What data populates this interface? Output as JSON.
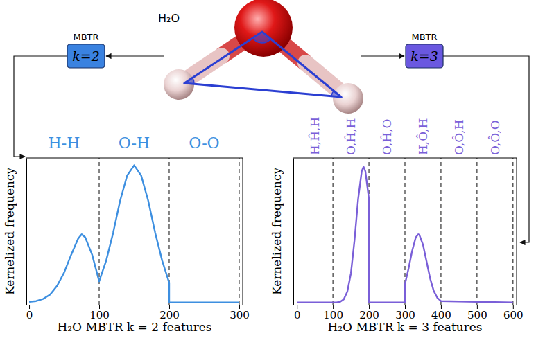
{
  "diagram": {
    "molecule": "H₂O",
    "descriptors": [
      {
        "title": "MBTR",
        "label": "k=2"
      },
      {
        "title": "MBTR",
        "label": "k=3"
      }
    ]
  },
  "chart_data": [
    {
      "type": "line",
      "x_label": "H₂O MBTR k = 2 features",
      "y_label": "Kernelized frequency",
      "xlim": [
        -4,
        305
      ],
      "xticks": [
        0,
        100,
        200,
        300
      ],
      "ylim": [
        0,
        1
      ],
      "tick_labels": "x",
      "x": [
        0,
        10,
        20,
        30,
        40,
        50,
        60,
        70,
        75,
        80,
        90,
        100,
        110,
        120,
        130,
        140,
        150,
        160,
        170,
        180,
        190,
        200,
        200,
        300
      ],
      "series": [
        {
          "color": "#3d8fe0",
          "values": [
            0.02,
            0.025,
            0.04,
            0.07,
            0.13,
            0.22,
            0.34,
            0.45,
            0.48,
            0.46,
            0.34,
            0.16,
            0.3,
            0.49,
            0.71,
            0.88,
            0.95,
            0.88,
            0.71,
            0.49,
            0.3,
            0.15,
            0.015,
            0.015
          ]
        }
      ],
      "regions": [
        {
          "label": "H-H",
          "start": 0,
          "end": 100
        },
        {
          "label": "O-H",
          "start": 100,
          "end": 200
        },
        {
          "label": "O-O",
          "start": 200,
          "end": 300
        }
      ]
    },
    {
      "type": "line",
      "x_label": "H₂O MBTR k = 3 features",
      "y_label": "Kernelized frequency",
      "xlim": [
        -10,
        610
      ],
      "xticks": [
        0,
        100,
        200,
        300,
        400,
        500,
        600
      ],
      "ylim": [
        0,
        1
      ],
      "tick_labels": "x",
      "x": [
        0,
        100,
        110,
        120,
        130,
        140,
        150,
        160,
        170,
        180,
        185,
        190,
        200,
        200,
        300,
        300,
        310,
        320,
        330,
        337,
        340,
        350,
        360,
        370,
        380,
        390,
        400,
        600
      ],
      "series": [
        {
          "color": "#7a5fd8",
          "values": [
            0.015,
            0.015,
            0.016,
            0.02,
            0.036,
            0.09,
            0.215,
            0.44,
            0.72,
            0.91,
            0.94,
            0.91,
            0.72,
            0.015,
            0.015,
            0.14,
            0.246,
            0.367,
            0.459,
            0.48,
            0.476,
            0.41,
            0.295,
            0.179,
            0.094,
            0.047,
            0.025,
            0.015
          ]
        }
      ],
      "regions": [
        {
          "label": "H,Ĥ,H",
          "start": 0,
          "end": 100
        },
        {
          "label": "O,Ĥ,H",
          "start": 100,
          "end": 200
        },
        {
          "label": "O,Ĥ,O",
          "start": 200,
          "end": 300
        },
        {
          "label": "H,Ô,H",
          "start": 300,
          "end": 400
        },
        {
          "label": "O,Ô,H",
          "start": 400,
          "end": 500
        },
        {
          "label": "O,Ô,O",
          "start": 500,
          "end": 600
        }
      ]
    }
  ]
}
